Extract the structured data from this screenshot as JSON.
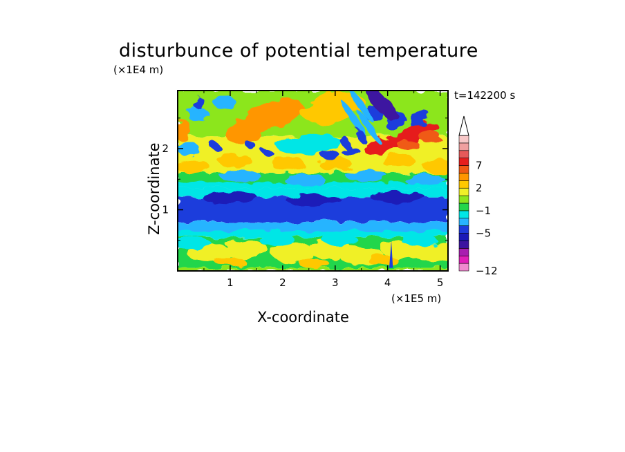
{
  "chart_data": {
    "type": "heatmap",
    "title": "disturbunce of potential temperature",
    "xlabel": "X-coordinate",
    "ylabel": "Z-coordinate",
    "x_unit": "(×1E5 m)",
    "y_unit": "(×1E4 m)",
    "time_label": "t=142200 s",
    "xlim": [
      0,
      5.15
    ],
    "ylim": [
      0,
      2.95
    ],
    "x_ticks": [
      "1",
      "2",
      "3",
      "4",
      "5"
    ],
    "x_tick_values": [
      1,
      2,
      3,
      4,
      5
    ],
    "y_ticks": [
      "1",
      "2"
    ],
    "y_tick_values": [
      1,
      2
    ],
    "colorbar": {
      "labeled_levels": [
        "7",
        "2",
        "−1",
        "−5",
        "−12"
      ],
      "labeled_values": [
        7,
        2,
        -1,
        -5,
        -12
      ],
      "colors": [
        "#f08ad0",
        "#e020b8",
        "#a81eb0",
        "#3c14a0",
        "#1a1ab8",
        "#1e3cdc",
        "#28b4ff",
        "#00e6e6",
        "#23d64b",
        "#8ce61e",
        "#f0f028",
        "#ffc800",
        "#ff9600",
        "#f05a14",
        "#e61e1e",
        "#e65a5a",
        "#f0a0a0",
        "#f8c8c8"
      ],
      "extend": "max"
    },
    "bands": [
      {
        "z_range": [
          0,
          0.05
        ],
        "value": "0 to 2",
        "description": "near-surface mixed yellow/green"
      },
      {
        "z_range": [
          0.05,
          0.55
        ],
        "value": "0 to 2",
        "description": "yellow/green patches with cyan"
      },
      {
        "z_range": [
          0.55,
          0.8
        ],
        "value": "-1 to -2",
        "description": "cyan layer"
      },
      {
        "z_range": [
          0.8,
          1.35
        ],
        "value": "-3 to -5",
        "description": "strong blue layer"
      },
      {
        "z_range": [
          1.35,
          1.6
        ],
        "value": "-1 to 0",
        "description": "cyan/green layer"
      },
      {
        "z_range": [
          1.6,
          2.2
        ],
        "value": "0 to 3",
        "description": "yellow/orange with wave patterns"
      },
      {
        "z_range": [
          2.2,
          2.95
        ],
        "value": "-5 to 7",
        "description": "gravity wave packets, red and blue cells"
      }
    ]
  }
}
